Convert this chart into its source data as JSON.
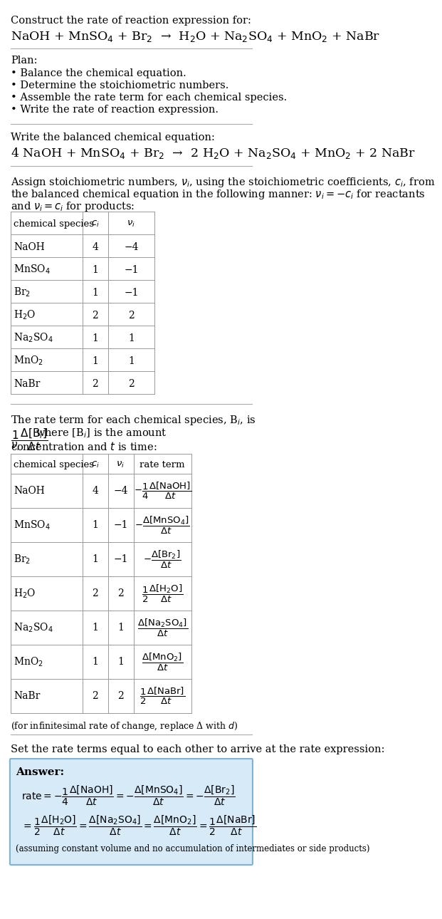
{
  "bg_color": "#ffffff",
  "title_line1": "Construct the rate of reaction expression for:",
  "reaction_unbalanced": "NaOH + MnSO$_4$ + Br$_2$  →  H$_2$O + Na$_2$SO$_4$ + MnO$_2$ + NaBr",
  "plan_label": "Plan:",
  "plan_items": [
    "• Balance the chemical equation.",
    "• Determine the stoichiometric numbers.",
    "• Assemble the rate term for each chemical species.",
    "• Write the rate of reaction expression."
  ],
  "balanced_label": "Write the balanced chemical equation:",
  "reaction_balanced": "4 NaOH + MnSO$_4$ + Br$_2$  →  2 H$_2$O + Na$_2$SO$_4$ + MnO$_2$ + 2 NaBr",
  "assign_text1": "Assign stoichiometric numbers, $\\nu_i$, using the stoichiometric coefficients, $c_i$, from",
  "assign_text2": "the balanced chemical equation in the following manner: $\\nu_i = -c_i$ for reactants",
  "assign_text3": "and $\\nu_i = c_i$ for products:",
  "table1_headers": [
    "chemical species",
    "$c_i$",
    "$\\nu_i$"
  ],
  "table1_data": [
    [
      "NaOH",
      "4",
      "−4"
    ],
    [
      "MnSO$_4$",
      "1",
      "−1"
    ],
    [
      "Br$_2$",
      "1",
      "−1"
    ],
    [
      "H$_2$O",
      "2",
      "2"
    ],
    [
      "Na$_2$SO$_4$",
      "1",
      "1"
    ],
    [
      "MnO$_2$",
      "1",
      "1"
    ],
    [
      "NaBr",
      "2",
      "2"
    ]
  ],
  "rate_text1": "The rate term for each chemical species, B$_i$, is $\\dfrac{1}{\\nu_i}\\dfrac{\\Delta[B_i]}{\\Delta t}$ where [B$_i$] is the amount",
  "rate_text2": "concentration and $t$ is time:",
  "table2_headers": [
    "chemical species",
    "$c_i$",
    "$\\nu_i$",
    "rate term"
  ],
  "table2_data": [
    [
      "NaOH",
      "4",
      "−4",
      "$-\\dfrac{1}{4}\\dfrac{\\Delta[\\mathrm{NaOH}]}{\\Delta t}$"
    ],
    [
      "MnSO$_4$",
      "1",
      "−1",
      "$-\\dfrac{\\Delta[\\mathrm{MnSO_4}]}{\\Delta t}$"
    ],
    [
      "Br$_2$",
      "1",
      "−1",
      "$-\\dfrac{\\Delta[\\mathrm{Br_2}]}{\\Delta t}$"
    ],
    [
      "H$_2$O",
      "2",
      "2",
      "$\\dfrac{1}{2}\\dfrac{\\Delta[\\mathrm{H_2O}]}{\\Delta t}$"
    ],
    [
      "Na$_2$SO$_4$",
      "1",
      "1",
      "$\\dfrac{\\Delta[\\mathrm{Na_2SO_4}]}{\\Delta t}$"
    ],
    [
      "MnO$_2$",
      "1",
      "1",
      "$\\dfrac{\\Delta[\\mathrm{MnO_2}]}{\\Delta t}$"
    ],
    [
      "NaBr",
      "2",
      "2",
      "$\\dfrac{1}{2}\\dfrac{\\Delta[\\mathrm{NaBr}]}{\\Delta t}$"
    ]
  ],
  "infinitesimal_note": "(for infinitesimal rate of change, replace Δ with $d$)",
  "set_text": "Set the rate terms equal to each other to arrive at the rate expression:",
  "answer_box_color": "#d6eaf8",
  "answer_border_color": "#7fb3d3",
  "answer_label": "Answer:",
  "answer_line1": "$\\mathrm{rate} = -\\dfrac{1}{4}\\dfrac{\\Delta[\\mathrm{NaOH}]}{\\Delta t} = -\\dfrac{\\Delta[\\mathrm{MnSO_4}]}{\\Delta t} = -\\dfrac{\\Delta[\\mathrm{Br_2}]}{\\Delta t}$",
  "answer_line2": "$= \\dfrac{1}{2}\\dfrac{\\Delta[\\mathrm{H_2O}]}{\\Delta t} = \\dfrac{\\Delta[\\mathrm{Na_2SO_4}]}{\\Delta t} = \\dfrac{\\Delta[\\mathrm{MnO_2}]}{\\Delta t} = \\dfrac{1}{2}\\dfrac{\\Delta[\\mathrm{NaBr}]}{\\Delta t}$",
  "answer_note": "(assuming constant volume and no accumulation of intermediates or side products)"
}
